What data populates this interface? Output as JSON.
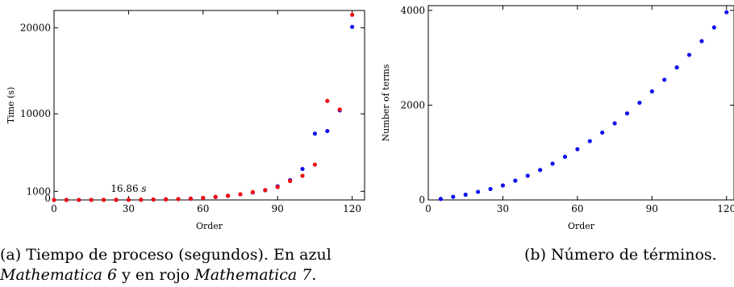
{
  "chart_data": [
    {
      "type": "scatter",
      "title": "",
      "xlabel": "Order",
      "ylabel": "Time (s)",
      "xlim": [
        0,
        125
      ],
      "ylim": [
        0,
        22000
      ],
      "xticks": [
        0,
        30,
        60,
        90,
        120
      ],
      "yticks": [
        0,
        1000,
        10000,
        20000
      ],
      "grid": false,
      "annotation": {
        "text": "16.86",
        "unit": "s",
        "x": 30,
        "y": 16.86
      },
      "series": [
        {
          "color": "#1010ee",
          "points": [
            [
              0,
              0
            ],
            [
              5,
              2
            ],
            [
              10,
              3
            ],
            [
              15,
              5
            ],
            [
              20,
              7
            ],
            [
              25,
              10
            ],
            [
              30,
              16.86
            ],
            [
              35,
              25
            ],
            [
              40,
              45
            ],
            [
              45,
              70
            ],
            [
              50,
              100
            ],
            [
              55,
              140
            ],
            [
              60,
              230
            ],
            [
              65,
              340
            ],
            [
              70,
              480
            ],
            [
              75,
              650
            ],
            [
              80,
              860
            ],
            [
              85,
              1120
            ],
            [
              90,
              1580
            ],
            [
              95,
              2300
            ],
            [
              100,
              3600
            ],
            [
              105,
              7700
            ],
            [
              110,
              8000
            ],
            [
              115,
              10400
            ],
            [
              120,
              20100
            ]
          ]
        },
        {
          "color": "#ee1010",
          "points": [
            [
              0,
              0
            ],
            [
              5,
              2
            ],
            [
              10,
              3
            ],
            [
              15,
              5
            ],
            [
              20,
              7
            ],
            [
              25,
              10
            ],
            [
              30,
              16.86
            ],
            [
              35,
              25
            ],
            [
              40,
              45
            ],
            [
              45,
              70
            ],
            [
              50,
              100
            ],
            [
              55,
              150
            ],
            [
              60,
              240
            ],
            [
              65,
              350
            ],
            [
              70,
              490
            ],
            [
              75,
              660
            ],
            [
              80,
              900
            ],
            [
              85,
              1150
            ],
            [
              90,
              1500
            ],
            [
              95,
              2200
            ],
            [
              100,
              2800
            ],
            [
              105,
              4100
            ],
            [
              110,
              11500
            ],
            [
              115,
              10500
            ],
            [
              120,
              21500
            ]
          ]
        }
      ]
    },
    {
      "type": "scatter",
      "title": "",
      "xlabel": "Order",
      "ylabel": "Number of terms",
      "xlim": [
        0,
        123
      ],
      "ylim": [
        0,
        4100
      ],
      "xticks": [
        0,
        30,
        60,
        90,
        120
      ],
      "yticks": [
        0,
        2000,
        4000
      ],
      "grid": false,
      "series": [
        {
          "color": "#1010ee",
          "points": [
            [
              5,
              21
            ],
            [
              10,
              66
            ],
            [
              15,
              111
            ],
            [
              20,
              171
            ],
            [
              25,
              231
            ],
            [
              30,
              306
            ],
            [
              35,
              406
            ],
            [
              40,
              511
            ],
            [
              45,
              631
            ],
            [
              50,
              766
            ],
            [
              55,
              911
            ],
            [
              60,
              1071
            ],
            [
              65,
              1241
            ],
            [
              70,
              1421
            ],
            [
              75,
              1616
            ],
            [
              80,
              1826
            ],
            [
              85,
              2051
            ],
            [
              90,
              2291
            ],
            [
              95,
              2536
            ],
            [
              100,
              2796
            ],
            [
              105,
              3061
            ],
            [
              110,
              3351
            ],
            [
              115,
              3641
            ],
            [
              120,
              3961
            ]
          ]
        }
      ]
    }
  ],
  "captions": {
    "a_line1": "(a) Tiempo de proceso (segundos). En azul",
    "a_m6": "Mathematica 6",
    "a_mid": " y en rojo ",
    "a_m7": "Mathematica 7",
    "a_end": ".",
    "b": "(b) Número de términos."
  }
}
